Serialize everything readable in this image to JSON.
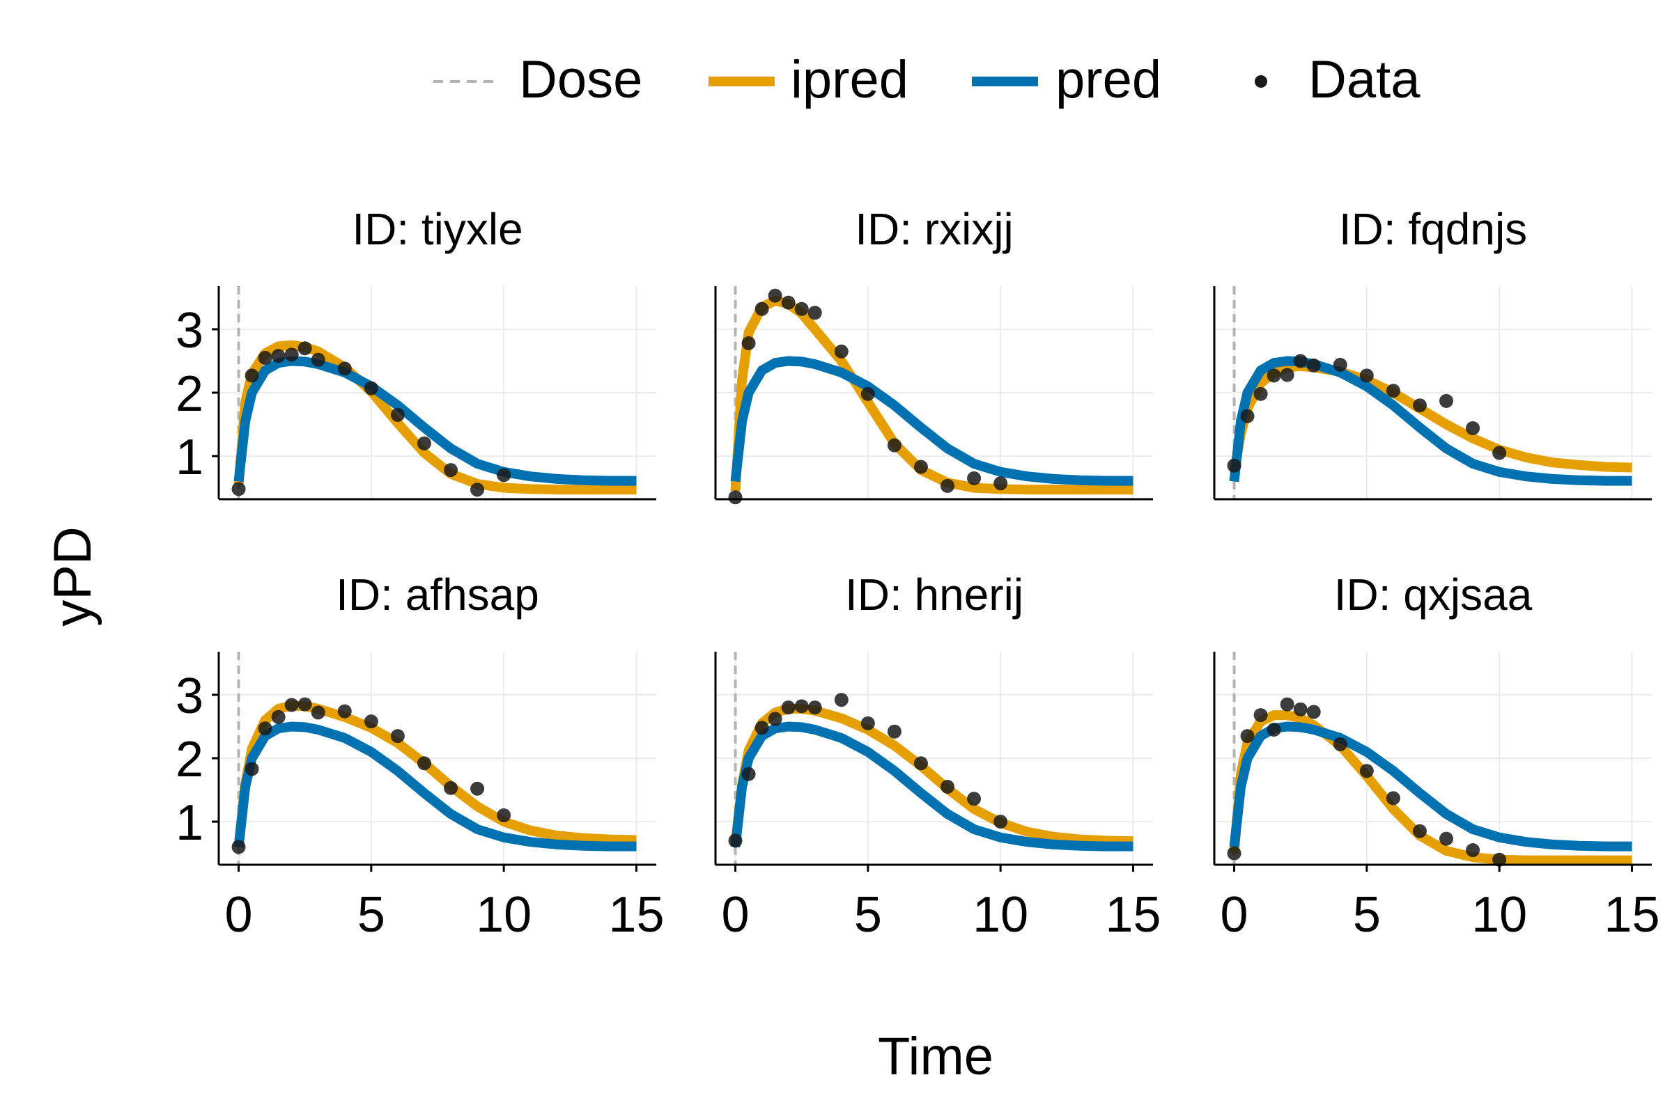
{
  "figure": {
    "xlabel": "Time",
    "ylabel": "yPD"
  },
  "legend": {
    "placement": "top",
    "items": [
      {
        "key": "dose",
        "label": "Dose",
        "style": "dashed-line",
        "color": "#b3b3b3"
      },
      {
        "key": "ipred",
        "label": "ipred",
        "style": "line",
        "color": "#e69f00"
      },
      {
        "key": "pred",
        "label": "pred",
        "style": "line",
        "color": "#0072b2"
      },
      {
        "key": "data",
        "label": "Data",
        "style": "point",
        "color": "#1a1a1a"
      }
    ]
  },
  "chart_data": [
    {
      "type": "line",
      "title": "ID: tiyxle",
      "xlim": [
        -0.75,
        15.75
      ],
      "ylim": [
        0.32,
        3.68
      ],
      "xticks": [
        0,
        5,
        10,
        15
      ],
      "yticks": [
        1,
        2,
        3
      ],
      "grid": true,
      "dose_x": 0,
      "series": [
        {
          "name": "ipred",
          "x": [
            0,
            0.25,
            0.5,
            1,
            1.5,
            2,
            2.5,
            3,
            4,
            5,
            6,
            7,
            8,
            9,
            10,
            11,
            12,
            13,
            14,
            15
          ],
          "y": [
            0.55,
            1.85,
            2.3,
            2.62,
            2.73,
            2.75,
            2.72,
            2.65,
            2.4,
            2.02,
            1.52,
            1.05,
            0.72,
            0.56,
            0.5,
            0.48,
            0.47,
            0.47,
            0.47,
            0.47
          ]
        },
        {
          "name": "pred",
          "x": [
            0,
            0.25,
            0.5,
            1,
            1.5,
            2,
            2.5,
            3,
            4,
            5,
            6,
            7,
            8,
            9,
            10,
            11,
            12,
            13,
            14,
            15
          ],
          "y": [
            0.6,
            1.55,
            2.0,
            2.35,
            2.47,
            2.5,
            2.49,
            2.45,
            2.32,
            2.1,
            1.8,
            1.45,
            1.12,
            0.88,
            0.75,
            0.68,
            0.64,
            0.62,
            0.61,
            0.61
          ]
        },
        {
          "name": "Data",
          "x": [
            0,
            0.5,
            1,
            1.5,
            2,
            2.5,
            3,
            4,
            5,
            6,
            7,
            8,
            9,
            10
          ],
          "y": [
            0.48,
            2.27,
            2.55,
            2.58,
            2.6,
            2.7,
            2.52,
            2.38,
            2.07,
            1.65,
            1.2,
            0.78,
            0.47,
            0.7
          ]
        }
      ]
    },
    {
      "type": "line",
      "title": "ID: rxixjj",
      "xlim": [
        -0.75,
        15.75
      ],
      "ylim": [
        0.32,
        3.68
      ],
      "xticks": [
        0,
        5,
        10,
        15
      ],
      "yticks": [
        1,
        2,
        3
      ],
      "grid": true,
      "dose_x": 0,
      "series": [
        {
          "name": "ipred",
          "x": [
            0,
            0.25,
            0.5,
            1,
            1.5,
            2,
            2.5,
            3,
            4,
            5,
            6,
            7,
            8,
            9,
            10,
            11,
            12,
            13,
            14,
            15
          ],
          "y": [
            0.45,
            2.2,
            2.95,
            3.35,
            3.45,
            3.4,
            3.25,
            3.0,
            2.5,
            1.85,
            1.2,
            0.78,
            0.58,
            0.5,
            0.48,
            0.47,
            0.47,
            0.47,
            0.47,
            0.47
          ]
        },
        {
          "name": "pred",
          "x": [
            0,
            0.25,
            0.5,
            1,
            1.5,
            2,
            2.5,
            3,
            4,
            5,
            6,
            7,
            8,
            9,
            10,
            11,
            12,
            13,
            14,
            15
          ],
          "y": [
            0.6,
            1.55,
            2.0,
            2.35,
            2.47,
            2.5,
            2.49,
            2.45,
            2.32,
            2.1,
            1.8,
            1.45,
            1.12,
            0.88,
            0.75,
            0.68,
            0.64,
            0.62,
            0.61,
            0.61
          ]
        },
        {
          "name": "Data",
          "x": [
            0,
            0.5,
            1,
            1.5,
            2,
            2.5,
            3,
            4,
            5,
            6,
            7,
            8,
            9,
            10
          ],
          "y": [
            0.35,
            2.78,
            3.32,
            3.53,
            3.42,
            3.32,
            3.26,
            2.65,
            1.98,
            1.17,
            0.83,
            0.53,
            0.65,
            0.57
          ]
        }
      ]
    },
    {
      "type": "line",
      "title": "ID: fqdnjs",
      "xlim": [
        -0.75,
        15.75
      ],
      "ylim": [
        0.32,
        3.68
      ],
      "xticks": [
        0,
        5,
        10,
        15
      ],
      "yticks": [
        1,
        2,
        3
      ],
      "grid": true,
      "dose_x": 0,
      "series": [
        {
          "name": "ipred",
          "x": [
            0,
            0.25,
            0.5,
            1,
            1.5,
            2,
            2.5,
            3,
            4,
            5,
            6,
            7,
            8,
            9,
            10,
            11,
            12,
            13,
            14,
            15
          ],
          "y": [
            0.75,
            1.35,
            1.75,
            2.15,
            2.32,
            2.4,
            2.42,
            2.4,
            2.33,
            2.2,
            2.0,
            1.75,
            1.5,
            1.28,
            1.1,
            0.98,
            0.9,
            0.86,
            0.83,
            0.82
          ]
        },
        {
          "name": "pred",
          "x": [
            0,
            0.25,
            0.5,
            1,
            1.5,
            2,
            2.5,
            3,
            4,
            5,
            6,
            7,
            8,
            9,
            10,
            11,
            12,
            13,
            14,
            15
          ],
          "y": [
            0.6,
            1.55,
            2.0,
            2.35,
            2.47,
            2.5,
            2.49,
            2.45,
            2.32,
            2.1,
            1.8,
            1.45,
            1.12,
            0.88,
            0.75,
            0.68,
            0.64,
            0.62,
            0.61,
            0.61
          ]
        },
        {
          "name": "Data",
          "x": [
            0,
            0.5,
            1,
            1.5,
            2,
            2.5,
            3,
            4,
            5,
            6,
            7,
            8,
            9,
            10
          ],
          "y": [
            0.85,
            1.63,
            1.98,
            2.27,
            2.28,
            2.5,
            2.43,
            2.44,
            2.27,
            2.03,
            1.8,
            1.87,
            1.44,
            1.05
          ]
        }
      ]
    },
    {
      "type": "line",
      "title": "ID: afhsap",
      "xlim": [
        -0.75,
        15.75
      ],
      "ylim": [
        0.32,
        3.68
      ],
      "xticks": [
        0,
        5,
        10,
        15
      ],
      "yticks": [
        1,
        2,
        3
      ],
      "grid": true,
      "dose_x": 0,
      "series": [
        {
          "name": "ipred",
          "x": [
            0,
            0.25,
            0.5,
            1,
            1.5,
            2,
            2.5,
            3,
            4,
            5,
            6,
            7,
            8,
            9,
            10,
            11,
            12,
            13,
            14,
            15
          ],
          "y": [
            0.6,
            1.6,
            2.15,
            2.6,
            2.78,
            2.83,
            2.82,
            2.78,
            2.65,
            2.48,
            2.24,
            1.92,
            1.56,
            1.24,
            1.0,
            0.86,
            0.78,
            0.74,
            0.72,
            0.71
          ]
        },
        {
          "name": "pred",
          "x": [
            0,
            0.25,
            0.5,
            1,
            1.5,
            2,
            2.5,
            3,
            4,
            5,
            6,
            7,
            8,
            9,
            10,
            11,
            12,
            13,
            14,
            15
          ],
          "y": [
            0.6,
            1.55,
            2.0,
            2.35,
            2.47,
            2.5,
            2.49,
            2.45,
            2.32,
            2.1,
            1.8,
            1.45,
            1.12,
            0.88,
            0.75,
            0.68,
            0.64,
            0.62,
            0.61,
            0.61
          ]
        },
        {
          "name": "Data",
          "x": [
            0,
            0.5,
            1,
            1.5,
            2,
            2.5,
            3,
            4,
            5,
            6,
            7,
            8,
            9,
            10
          ],
          "y": [
            0.6,
            1.83,
            2.47,
            2.65,
            2.84,
            2.85,
            2.72,
            2.74,
            2.58,
            2.35,
            1.92,
            1.53,
            1.52,
            1.1
          ]
        }
      ]
    },
    {
      "type": "line",
      "title": "ID: hnerij",
      "xlim": [
        -0.75,
        15.75
      ],
      "ylim": [
        0.32,
        3.68
      ],
      "xticks": [
        0,
        5,
        10,
        15
      ],
      "yticks": [
        1,
        2,
        3
      ],
      "grid": true,
      "dose_x": 0,
      "series": [
        {
          "name": "ipred",
          "x": [
            0,
            0.25,
            0.5,
            1,
            1.5,
            2,
            2.5,
            3,
            4,
            5,
            6,
            7,
            8,
            9,
            10,
            11,
            12,
            13,
            14,
            15
          ],
          "y": [
            0.65,
            1.58,
            2.12,
            2.55,
            2.72,
            2.78,
            2.78,
            2.75,
            2.63,
            2.45,
            2.2,
            1.88,
            1.52,
            1.2,
            0.98,
            0.84,
            0.76,
            0.72,
            0.7,
            0.69
          ]
        },
        {
          "name": "pred",
          "x": [
            0,
            0.25,
            0.5,
            1,
            1.5,
            2,
            2.5,
            3,
            4,
            5,
            6,
            7,
            8,
            9,
            10,
            11,
            12,
            13,
            14,
            15
          ],
          "y": [
            0.6,
            1.55,
            2.0,
            2.35,
            2.47,
            2.5,
            2.49,
            2.45,
            2.32,
            2.1,
            1.8,
            1.45,
            1.12,
            0.88,
            0.75,
            0.68,
            0.64,
            0.62,
            0.61,
            0.61
          ]
        },
        {
          "name": "Data",
          "x": [
            0,
            0.5,
            1,
            1.5,
            2,
            2.5,
            3,
            4,
            5,
            6,
            7,
            8,
            9,
            10
          ],
          "y": [
            0.7,
            1.75,
            2.48,
            2.62,
            2.8,
            2.82,
            2.8,
            2.92,
            2.55,
            2.42,
            1.92,
            1.55,
            1.36,
            1.0
          ]
        }
      ]
    },
    {
      "type": "line",
      "title": "ID: qxjsaa",
      "xlim": [
        -0.75,
        15.75
      ],
      "ylim": [
        0.32,
        3.68
      ],
      "xticks": [
        0,
        5,
        10,
        15
      ],
      "yticks": [
        1,
        2,
        3
      ],
      "grid": true,
      "dose_x": 0,
      "series": [
        {
          "name": "ipred",
          "x": [
            0,
            0.25,
            0.5,
            1,
            1.5,
            2,
            2.5,
            3,
            4,
            5,
            6,
            7,
            8,
            9,
            10,
            11,
            12,
            13,
            14,
            15
          ],
          "y": [
            0.5,
            1.75,
            2.25,
            2.58,
            2.68,
            2.68,
            2.63,
            2.52,
            2.2,
            1.72,
            1.2,
            0.78,
            0.54,
            0.44,
            0.4,
            0.39,
            0.39,
            0.39,
            0.39,
            0.39
          ]
        },
        {
          "name": "pred",
          "x": [
            0,
            0.25,
            0.5,
            1,
            1.5,
            2,
            2.5,
            3,
            4,
            5,
            6,
            7,
            8,
            9,
            10,
            11,
            12,
            13,
            14,
            15
          ],
          "y": [
            0.6,
            1.55,
            2.0,
            2.35,
            2.47,
            2.5,
            2.49,
            2.45,
            2.32,
            2.1,
            1.8,
            1.45,
            1.12,
            0.88,
            0.75,
            0.68,
            0.64,
            0.62,
            0.61,
            0.61
          ]
        },
        {
          "name": "Data",
          "x": [
            0,
            0.5,
            1,
            1.5,
            2,
            2.5,
            3,
            4,
            5,
            6,
            7,
            8,
            9,
            10
          ],
          "y": [
            0.5,
            2.35,
            2.68,
            2.45,
            2.85,
            2.77,
            2.73,
            2.22,
            1.8,
            1.37,
            0.85,
            0.73,
            0.55,
            0.4
          ]
        }
      ]
    }
  ]
}
